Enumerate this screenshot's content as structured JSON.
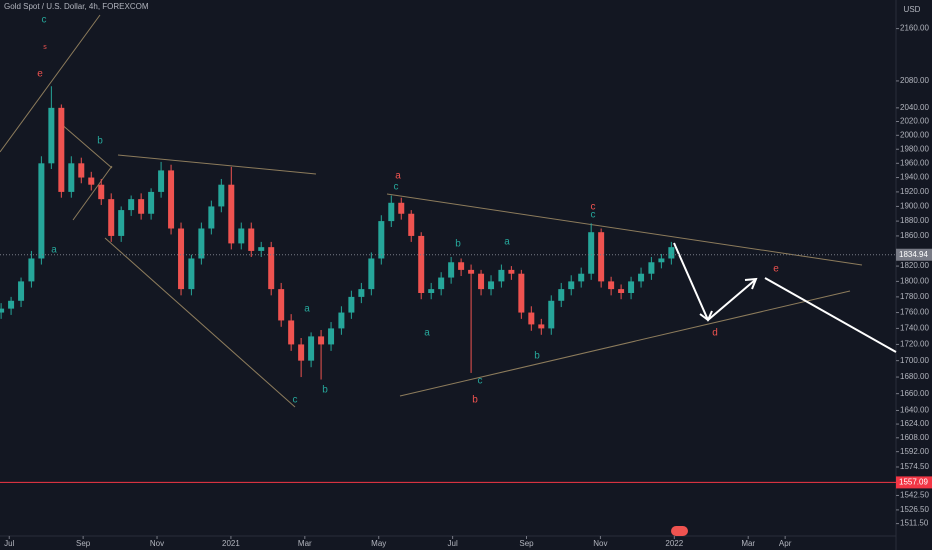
{
  "chart_data": {
    "type": "candlestick",
    "title": "Gold Spot / U.S. Dollar, 4h, FOREXCOM",
    "currency": "USD",
    "log": true,
    "up_color": "#26a69a",
    "down_color": "#ef5350",
    "xlim": [
      -0.25,
      24
    ],
    "ylim": [
      1483,
      2205
    ],
    "xticks": [
      {
        "value": 0,
        "label": "Jul"
      },
      {
        "value": 2,
        "label": "Sep"
      },
      {
        "value": 4,
        "label": "Nov"
      },
      {
        "value": 6,
        "label": "2021"
      },
      {
        "value": 8,
        "label": "Mar"
      },
      {
        "value": 10,
        "label": "May"
      },
      {
        "value": 12,
        "label": "Jul"
      },
      {
        "value": 14,
        "label": "Sep"
      },
      {
        "value": 16,
        "label": "Nov"
      },
      {
        "value": 18,
        "label": "2022"
      },
      {
        "value": 20,
        "label": "Mar"
      },
      {
        "value": 21,
        "label": "Apr"
      }
    ],
    "yticks": [
      {
        "value": 2160,
        "label": "2160.00"
      },
      {
        "value": 2080,
        "label": "2080.00"
      },
      {
        "value": 2040,
        "label": "2040.00"
      },
      {
        "value": 2020,
        "label": "2020.00"
      },
      {
        "value": 2000,
        "label": "2000.00"
      },
      {
        "value": 1980,
        "label": "1980.00"
      },
      {
        "value": 1960,
        "label": "1960.00"
      },
      {
        "value": 1940,
        "label": "1940.00"
      },
      {
        "value": 1920,
        "label": "1920.00"
      },
      {
        "value": 1900,
        "label": "1900.00"
      },
      {
        "value": 1880,
        "label": "1880.00"
      },
      {
        "value": 1860,
        "label": "1860.00"
      },
      {
        "value": 1820,
        "label": "1820.00"
      },
      {
        "value": 1800,
        "label": "1800.00"
      },
      {
        "value": 1780,
        "label": "1780.00"
      },
      {
        "value": 1760,
        "label": "1760.00"
      },
      {
        "value": 1740,
        "label": "1740.00"
      },
      {
        "value": 1720,
        "label": "1720.00"
      },
      {
        "value": 1700,
        "label": "1700.00"
      },
      {
        "value": 1680,
        "label": "1680.00"
      },
      {
        "value": 1660,
        "label": "1660.00"
      },
      {
        "value": 1640,
        "label": "1640.00"
      },
      {
        "value": 1624,
        "label": "1624.00"
      },
      {
        "value": 1608,
        "label": "1608.00"
      },
      {
        "value": 1592,
        "label": "1592.00"
      },
      {
        "value": 1574.5,
        "label": "1574.50"
      },
      {
        "value": 1542.5,
        "label": "1542.50"
      },
      {
        "value": 1526.5,
        "label": "1526.50"
      },
      {
        "value": 1511.5,
        "label": "1511.50"
      }
    ],
    "price_lines": [
      {
        "value": 1834.94,
        "label": "1834.94",
        "color": "#787b86"
      },
      {
        "value": 1557.09,
        "label": "1557.09",
        "color": "#f23645"
      }
    ],
    "x": [
      -0.22,
      0.05,
      0.32,
      0.6,
      0.87,
      1.14,
      1.41,
      1.68,
      1.95,
      2.22,
      2.49,
      2.76,
      3.03,
      3.3,
      3.57,
      3.84,
      4.11,
      4.38,
      4.65,
      4.93,
      5.2,
      5.47,
      5.74,
      6.01,
      6.28,
      6.55,
      6.82,
      7.09,
      7.36,
      7.63,
      7.9,
      8.17,
      8.44,
      8.71,
      8.99,
      9.26,
      9.53,
      9.8,
      10.07,
      10.34,
      10.61,
      10.88,
      11.15,
      11.42,
      11.69,
      11.96,
      12.23,
      12.5,
      12.77,
      13.04,
      13.32,
      13.59,
      13.86,
      14.13,
      14.4,
      14.67,
      14.94,
      15.21,
      15.48,
      15.75,
      16.02,
      16.29,
      16.56,
      16.83,
      17.1,
      17.38,
      17.65,
      17.92
    ],
    "open": [
      1760,
      1765,
      1775,
      1800,
      1830,
      1960,
      2040,
      1920,
      1960,
      1940,
      1930,
      1910,
      1860,
      1895,
      1910,
      1890,
      1920,
      1950,
      1870,
      1790,
      1830,
      1870,
      1900,
      1930,
      1850,
      1870,
      1840,
      1845,
      1790,
      1750,
      1720,
      1700,
      1730,
      1720,
      1740,
      1760,
      1780,
      1790,
      1830,
      1880,
      1905,
      1890,
      1860,
      1785,
      1790,
      1805,
      1825,
      1815,
      1810,
      1790,
      1800,
      1815,
      1810,
      1760,
      1745,
      1740,
      1775,
      1790,
      1800,
      1810,
      1865,
      1800,
      1790,
      1785,
      1800,
      1810,
      1825,
      1830
    ],
    "high": [
      1772,
      1780,
      1805,
      1840,
      1970,
      2072,
      2045,
      1970,
      1968,
      1948,
      1938,
      1918,
      1900,
      1915,
      1918,
      1925,
      1962,
      1958,
      1878,
      1835,
      1878,
      1908,
      1938,
      1955,
      1878,
      1878,
      1852,
      1852,
      1798,
      1758,
      1728,
      1735,
      1738,
      1748,
      1768,
      1788,
      1798,
      1838,
      1888,
      1915,
      1912,
      1895,
      1865,
      1798,
      1812,
      1832,
      1830,
      1822,
      1815,
      1808,
      1822,
      1820,
      1815,
      1768,
      1752,
      1782,
      1798,
      1808,
      1818,
      1877,
      1870,
      1806,
      1796,
      1806,
      1818,
      1832,
      1836,
      1852
    ],
    "low": [
      1752,
      1757,
      1767,
      1792,
      1822,
      1952,
      1912,
      1912,
      1932,
      1922,
      1902,
      1852,
      1852,
      1887,
      1882,
      1882,
      1912,
      1862,
      1782,
      1782,
      1822,
      1862,
      1892,
      1842,
      1842,
      1832,
      1832,
      1782,
      1742,
      1712,
      1680,
      1692,
      1677,
      1712,
      1732,
      1752,
      1772,
      1782,
      1822,
      1872,
      1882,
      1852,
      1777,
      1777,
      1782,
      1797,
      1807,
      1685,
      1782,
      1782,
      1792,
      1802,
      1752,
      1737,
      1732,
      1732,
      1767,
      1782,
      1792,
      1802,
      1792,
      1782,
      1777,
      1777,
      1792,
      1802,
      1817,
      1822
    ],
    "close": [
      1765,
      1775,
      1800,
      1830,
      1960,
      2040,
      1920,
      1960,
      1940,
      1930,
      1910,
      1860,
      1895,
      1910,
      1890,
      1920,
      1950,
      1870,
      1790,
      1830,
      1870,
      1900,
      1930,
      1850,
      1870,
      1840,
      1845,
      1790,
      1750,
      1720,
      1700,
      1730,
      1720,
      1740,
      1760,
      1780,
      1790,
      1830,
      1880,
      1905,
      1890,
      1860,
      1785,
      1790,
      1805,
      1825,
      1815,
      1810,
      1790,
      1800,
      1815,
      1810,
      1760,
      1745,
      1740,
      1775,
      1790,
      1800,
      1810,
      1865,
      1800,
      1790,
      1785,
      1800,
      1810,
      1825,
      1830,
      1845
    ],
    "annotations": [
      "c",
      "s",
      "e",
      "b",
      "a",
      "a",
      "c",
      "b",
      "a",
      "c",
      "c",
      "a",
      "a",
      "b",
      "c",
      "c",
      "b",
      "b",
      "d",
      "e"
    ]
  }
}
